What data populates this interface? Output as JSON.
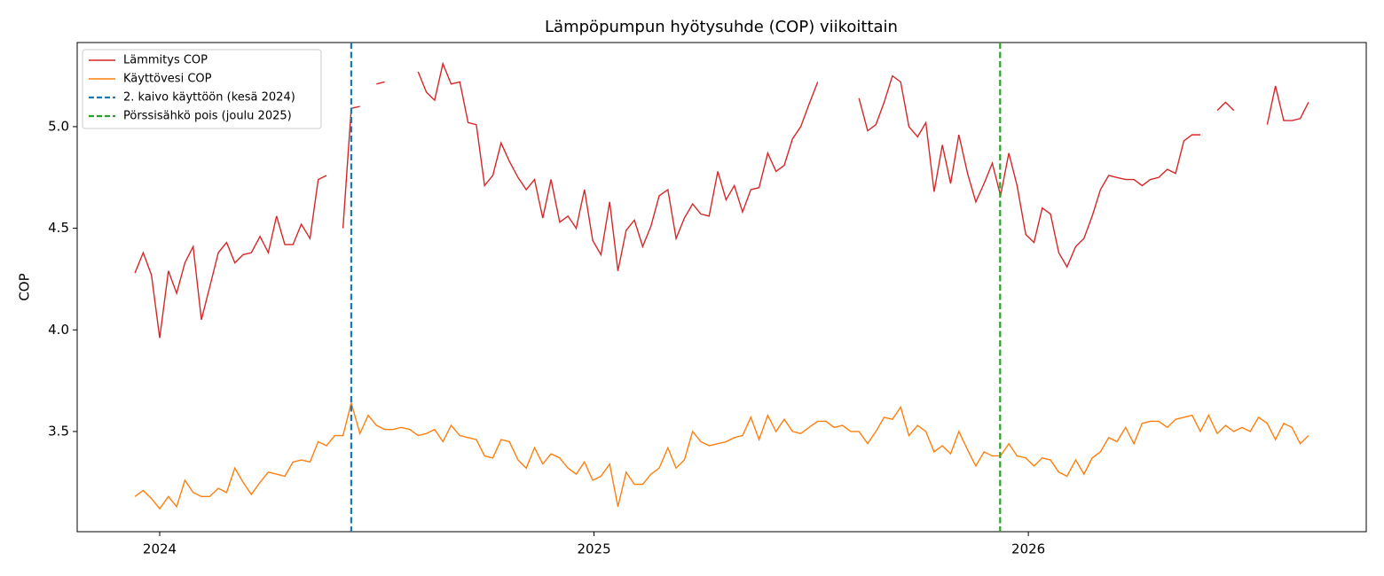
{
  "chart_data": {
    "type": "line",
    "title": "Lämpöpumpun hyötysuhde (COP) viikoittain",
    "ylabel": "COP",
    "x": [
      2023.943,
      2023.962,
      2023.981,
      2024.0,
      2024.02,
      2024.039,
      2024.058,
      2024.077,
      2024.096,
      2024.115,
      2024.135,
      2024.154,
      2024.173,
      2024.192,
      2024.211,
      2024.231,
      2024.25,
      2024.269,
      2024.288,
      2024.307,
      2024.326,
      2024.346,
      2024.365,
      2024.384,
      2024.403,
      2024.422,
      2024.441,
      2024.461,
      2024.48,
      2024.499,
      2024.518,
      2024.537,
      2024.556,
      2024.576,
      2024.595,
      2024.614,
      2024.633,
      2024.652,
      2024.671,
      2024.691,
      2024.71,
      2024.729,
      2024.748,
      2024.767,
      2024.786,
      2024.805,
      2024.825,
      2024.844,
      2024.863,
      2024.882,
      2024.901,
      2024.921,
      2024.94,
      2024.959,
      2024.978,
      2024.997,
      2025.016,
      2025.036,
      2025.055,
      2025.074,
      2025.093,
      2025.112,
      2025.131,
      2025.15,
      2025.17,
      2025.189,
      2025.208,
      2025.227,
      2025.246,
      2025.265,
      2025.285,
      2025.304,
      2025.323,
      2025.342,
      2025.361,
      2025.38,
      2025.4,
      2025.419,
      2025.438,
      2025.457,
      2025.476,
      2025.495,
      2025.515,
      2025.534,
      2025.553,
      2025.572,
      2025.591,
      2025.61,
      2025.63,
      2025.649,
      2025.668,
      2025.687,
      2025.706,
      2025.725,
      2025.745,
      2025.764,
      2025.783,
      2025.802,
      2025.821,
      2025.84,
      2025.86,
      2025.879,
      2025.898,
      2025.917,
      2025.936,
      2025.955,
      2025.974,
      2025.994,
      2026.013,
      2026.032,
      2026.051,
      2026.07,
      2026.089,
      2026.109,
      2026.128,
      2026.147,
      2026.166,
      2026.185,
      2026.204,
      2026.224,
      2026.243,
      2026.262,
      2026.281,
      2026.3,
      2026.32,
      2026.339,
      2026.358,
      2026.377,
      2026.396,
      2026.415,
      2026.435,
      2026.454,
      2026.473,
      2026.492,
      2026.511,
      2026.53,
      2026.55,
      2026.569,
      2026.588,
      2026.607,
      2026.626,
      2026.645
    ],
    "series": [
      {
        "name": "Lämmitys COP",
        "color": "#d62728",
        "values": [
          4.28,
          4.38,
          4.27,
          3.96,
          4.29,
          4.18,
          4.33,
          4.41,
          4.05,
          4.21,
          4.38,
          4.43,
          4.33,
          4.37,
          4.38,
          4.46,
          4.38,
          4.56,
          4.42,
          4.42,
          4.52,
          4.45,
          4.74,
          4.76,
          null,
          4.5,
          5.09,
          5.1,
          null,
          5.21,
          5.22,
          null,
          null,
          null,
          5.27,
          5.17,
          5.13,
          5.31,
          5.21,
          5.22,
          5.02,
          5.01,
          4.71,
          4.76,
          4.92,
          4.83,
          4.75,
          4.69,
          4.74,
          4.55,
          4.74,
          4.53,
          4.56,
          4.5,
          4.69,
          4.44,
          4.37,
          4.63,
          4.29,
          4.49,
          4.54,
          4.41,
          4.51,
          4.66,
          4.69,
          4.45,
          4.55,
          4.62,
          4.57,
          4.56,
          4.78,
          4.64,
          4.71,
          4.58,
          4.69,
          4.7,
          4.87,
          4.78,
          4.81,
          4.94,
          5.0,
          5.11,
          5.22,
          null,
          null,
          null,
          null,
          5.14,
          4.98,
          5.01,
          5.12,
          5.25,
          5.22,
          5.0,
          4.95,
          5.02,
          4.68,
          4.91,
          4.72,
          4.96,
          4.77,
          4.63,
          4.72,
          4.82,
          4.66,
          4.87,
          4.71,
          4.47,
          4.43,
          4.6,
          4.57,
          4.38,
          4.31,
          4.41,
          4.45,
          4.56,
          4.69,
          4.76,
          4.75,
          4.74,
          4.74,
          4.71,
          4.74,
          4.75,
          4.79,
          4.77,
          4.93,
          4.96,
          4.96,
          null,
          5.08,
          5.12,
          5.08,
          null,
          null,
          null,
          5.01,
          5.2,
          5.03,
          5.03,
          5.04,
          5.12
        ]
      },
      {
        "name": "Käyttövesi COP",
        "color": "#ff7f0e",
        "values": [
          3.18,
          3.21,
          3.17,
          3.12,
          3.18,
          3.13,
          3.26,
          3.2,
          3.18,
          3.18,
          3.22,
          3.2,
          3.32,
          3.25,
          3.19,
          3.25,
          3.3,
          3.29,
          3.28,
          3.35,
          3.36,
          3.35,
          3.45,
          3.43,
          3.48,
          3.48,
          3.64,
          3.49,
          3.58,
          3.53,
          3.51,
          3.51,
          3.52,
          3.51,
          3.48,
          3.49,
          3.51,
          3.45,
          3.53,
          3.48,
          3.47,
          3.46,
          3.38,
          3.37,
          3.46,
          3.45,
          3.36,
          3.32,
          3.42,
          3.34,
          3.39,
          3.37,
          3.32,
          3.29,
          3.35,
          3.26,
          3.28,
          3.34,
          3.13,
          3.3,
          3.24,
          3.24,
          3.29,
          3.32,
          3.42,
          3.32,
          3.36,
          3.5,
          3.45,
          3.43,
          3.44,
          3.45,
          3.47,
          3.48,
          3.57,
          3.46,
          3.58,
          3.5,
          3.56,
          3.5,
          3.49,
          3.52,
          3.55,
          3.55,
          3.52,
          3.53,
          3.5,
          3.5,
          3.44,
          3.5,
          3.57,
          3.56,
          3.62,
          3.48,
          3.53,
          3.5,
          3.4,
          3.43,
          3.39,
          3.5,
          3.41,
          3.33,
          3.4,
          3.38,
          3.38,
          3.44,
          3.38,
          3.37,
          3.33,
          3.37,
          3.36,
          3.3,
          3.28,
          3.36,
          3.29,
          3.37,
          3.4,
          3.47,
          3.45,
          3.52,
          3.44,
          3.54,
          3.55,
          3.55,
          3.52,
          3.56,
          3.57,
          3.58,
          3.5,
          3.58,
          3.49,
          3.53,
          3.5,
          3.52,
          3.5,
          3.57,
          3.54,
          3.46,
          3.54,
          3.52,
          3.44,
          3.48
        ]
      }
    ],
    "vlines": [
      {
        "x": 2024.441,
        "label": "2. kaivo käyttöön (kesä 2024)",
        "color": "#1f77b4"
      },
      {
        "x": 2025.935,
        "label": "Pörssisähkö pois (joulu 2025)",
        "color": "#2ca02c"
      }
    ],
    "xlim": [
      2023.81,
      2026.778
    ],
    "xticks": [
      2024,
      2025,
      2026
    ],
    "ylim": [
      3.007,
      5.414
    ],
    "yticks": [
      {
        "value": 4.0,
        "label": "4.0"
      },
      4.5,
      {
        "value": 5.0,
        "label": "5.0"
      },
      3.5
    ],
    "grid": false,
    "legend": "upper left"
  }
}
